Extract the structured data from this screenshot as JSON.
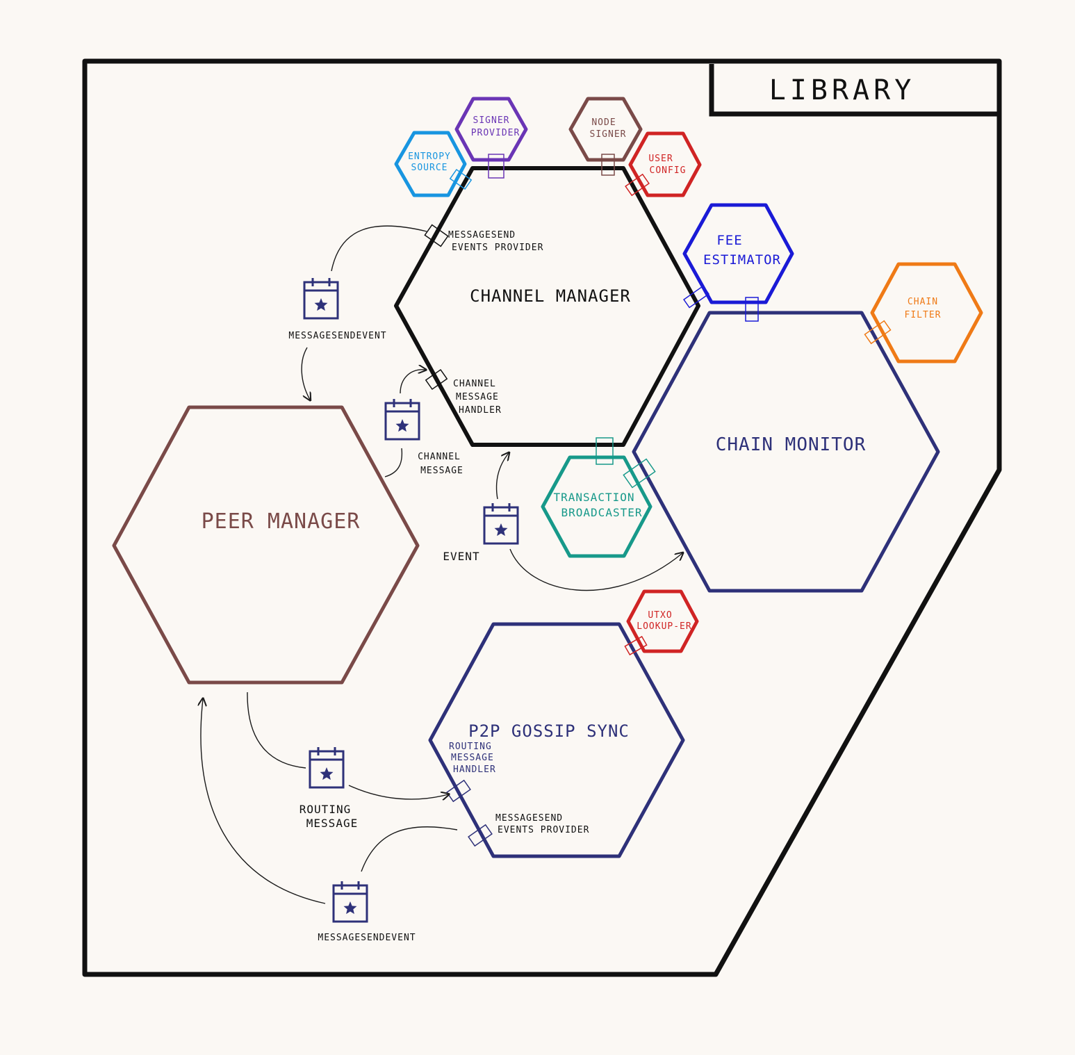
{
  "library": {
    "title": "LIBRARY"
  },
  "colors": {
    "black": "#111111",
    "peer": "#7a4a48",
    "navy": "#2e3179",
    "blue": "#1a1ad6",
    "cyan": "#1895e0",
    "purple": "#6a35b5",
    "brown": "#7a4a48",
    "red": "#d02424",
    "orange": "#ef7a16",
    "teal": "#17998a",
    "arrow": "#1a1a1a",
    "event_icon": "#2e3179"
  },
  "modules": {
    "channel_manager": "CHANNEL MANAGER",
    "peer_manager": "PEER MANAGER",
    "chain_monitor": "CHAIN MONITOR",
    "p2p_gossip_sync": "P2P GOSSIP SYNC"
  },
  "interfaces": {
    "entropy_source": [
      "ENTROPY",
      "SOURCE"
    ],
    "signer_provider": [
      "SIGNER",
      "PROVIDER"
    ],
    "node_signer": [
      "NODE",
      "SIGNER"
    ],
    "user_config": [
      "USER",
      "CONFIG"
    ],
    "fee_estimator": [
      "FEE",
      "ESTIMATOR"
    ],
    "chain_filter": [
      "CHAIN",
      "FILTER"
    ],
    "transaction_broadcaster": [
      "TRANSACTION",
      "BROADCASTER"
    ],
    "utxo_lookup": [
      "UTXO",
      "LOOKUP-ER"
    ]
  },
  "ports": {
    "cm_msg_send_events": [
      "MESSAGESEND",
      "EVENTS PROVIDER"
    ],
    "cm_channel_msg_handler": [
      "CHANNEL",
      "MESSAGE",
      "HANDLER"
    ],
    "gossip_routing_msg_handler": [
      "ROUTING",
      "MESSAGE",
      "HANDLER"
    ],
    "gossip_msg_send_events": [
      "MESSAGESEND",
      "EVENTS PROVIDER"
    ]
  },
  "events": {
    "msg_send_event_top": [
      "MESSAGESENDEVENT"
    ],
    "channel_message": [
      "CHANNEL",
      "MESSAGE"
    ],
    "event": [
      "EVENT"
    ],
    "routing_message": [
      "ROUTING",
      "MESSAGE"
    ],
    "msg_send_event_bottom": [
      "MESSAGESENDEVENT"
    ]
  }
}
